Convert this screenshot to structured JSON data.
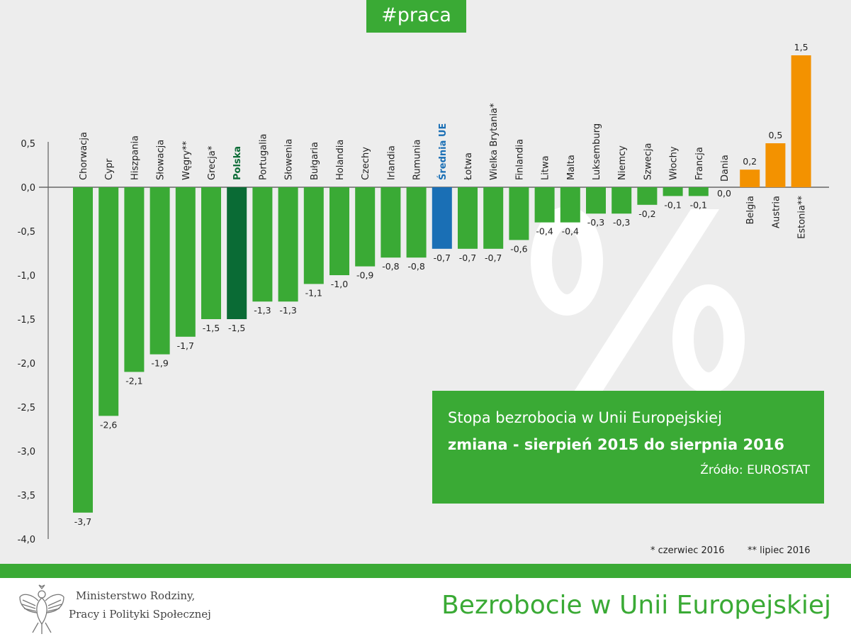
{
  "tag": "#praca",
  "title": {
    "line1": "Stopa bezrobocia w Unii Europejskiej",
    "line2": "zmiana - sierpień 2015 do sierpnia 2016",
    "source": "Źródło: EUROSTAT"
  },
  "watermark": "%",
  "notes": {
    "june": "* czerwiec 2016",
    "july": "** lipiec 2016"
  },
  "footer": {
    "ministry_line1": "Ministerstwo Rodziny,",
    "ministry_line2": "Pracy i Polityki Społecznej",
    "title": "Bezrobocie w Unii Europejskiej"
  },
  "colors": {
    "bar": "#3aaa35",
    "poland": "#0a6b35",
    "eu": "#1a6fb5",
    "positive": "#f39200"
  },
  "chart_data": {
    "type": "bar",
    "title": "Stopa bezrobocia w Unii Europejskiej – zmiana sierpień 2015 do sierpnia 2016",
    "ylim": [
      -4.0,
      0.5
    ],
    "yticks": [
      "0,5",
      "0,0",
      "-0,5",
      "-1,0",
      "-1,5",
      "-2,0",
      "-2,5",
      "-3,0",
      "-3,5",
      "-4,0"
    ],
    "ytick_values": [
      0.5,
      0,
      -0.5,
      -1,
      -1.5,
      -2,
      -2.5,
      -3,
      -3.5,
      -4
    ],
    "categories": [
      "Chorwacja",
      "Cypr",
      "Hiszpania",
      "Słowacja",
      "Węgry**",
      "Grecja*",
      "Polska",
      "Portugalia",
      "Słowenia",
      "Bułgaria",
      "Holandia",
      "Czechy",
      "Irlandia",
      "Rumunia",
      "Średnia UE",
      "Łotwa",
      "Wielka Brytania*",
      "Finlandia",
      "Litwa",
      "Malta",
      "Luksemburg",
      "Niemcy",
      "Szwecja",
      "Włochy",
      "Francja",
      "Dania",
      "Belgia",
      "Austria",
      "Estonia**"
    ],
    "values": [
      -3.7,
      -2.6,
      -2.1,
      -1.9,
      -1.7,
      -1.5,
      -1.5,
      -1.3,
      -1.3,
      -1.1,
      -1.0,
      -0.9,
      -0.8,
      -0.8,
      -0.7,
      -0.7,
      -0.7,
      -0.6,
      -0.4,
      -0.4,
      -0.3,
      -0.3,
      -0.2,
      -0.1,
      -0.1,
      0.0,
      0.2,
      0.5,
      1.5
    ],
    "value_labels": [
      "-3,7",
      "-2,6",
      "-2,1",
      "-1,9",
      "-1,7",
      "-1,5",
      "-1,5",
      "-1,3",
      "-1,3",
      "-1,1",
      "-1,0",
      "-0,9",
      "-0,8",
      "-0,8",
      "-0,7",
      "-0,7",
      "-0,7",
      "-0,6",
      "-0,4",
      "-0,4",
      "-0,3",
      "-0,3",
      "-0,2",
      "-0,1",
      "-0,1",
      "0,0",
      "0,2",
      "0,5",
      "1,5"
    ],
    "highlight": {
      "Polska": "poland",
      "Średnia UE": "eu"
    }
  }
}
